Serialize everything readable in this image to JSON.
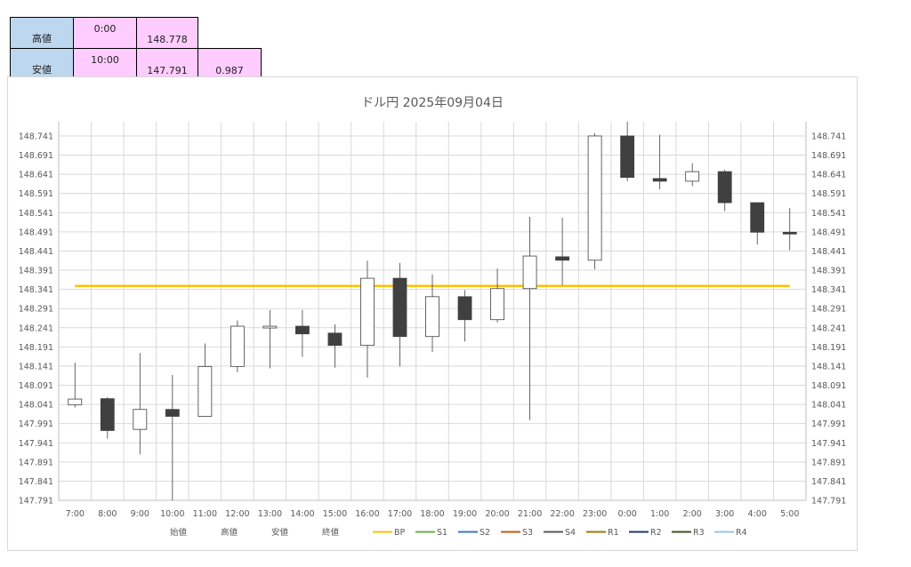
{
  "summary": {
    "rows": [
      {
        "label": "高値",
        "time": "0:00",
        "price": "148.778",
        "diff": ""
      },
      {
        "label": "安値",
        "time": "10:00",
        "price": "147.791",
        "diff": "0.987"
      }
    ]
  },
  "chart_data": {
    "type": "candlestick",
    "title": "ドル円  2025年09月04日",
    "y_ticks": [
      "147.791",
      "147.841",
      "147.891",
      "147.941",
      "147.991",
      "148.041",
      "148.091",
      "148.141",
      "148.191",
      "148.241",
      "148.291",
      "148.341",
      "148.391",
      "148.441",
      "148.491",
      "148.541",
      "148.591",
      "148.641",
      "148.691",
      "148.741"
    ],
    "ylim": [
      147.791,
      148.778
    ],
    "categories": [
      "7:00",
      "8:00",
      "9:00",
      "10:00",
      "11:00",
      "12:00",
      "13:00",
      "14:00",
      "15:00",
      "16:00",
      "17:00",
      "18:00",
      "19:00",
      "20:00",
      "21:00",
      "22:00",
      "23:00",
      "0:00",
      "1:00",
      "2:00",
      "3:00",
      "4:00",
      "5:00"
    ],
    "candles": [
      {
        "open": 148.04,
        "high": 148.15,
        "low": 148.033,
        "close": 148.055
      },
      {
        "open": 148.056,
        "high": 148.06,
        "low": 147.952,
        "close": 147.973
      },
      {
        "open": 147.976,
        "high": 148.175,
        "low": 147.911,
        "close": 148.028
      },
      {
        "open": 148.028,
        "high": 148.118,
        "low": 147.791,
        "close": 148.01
      },
      {
        "open": 148.01,
        "high": 148.2,
        "low": 148.01,
        "close": 148.14
      },
      {
        "open": 148.14,
        "high": 148.26,
        "low": 148.125,
        "close": 148.245
      },
      {
        "open": 148.243,
        "high": 148.287,
        "low": 148.135,
        "close": 148.245
      },
      {
        "open": 148.245,
        "high": 148.287,
        "low": 148.165,
        "close": 148.225
      },
      {
        "open": 148.227,
        "high": 148.25,
        "low": 148.137,
        "close": 148.195
      },
      {
        "open": 148.195,
        "high": 148.416,
        "low": 148.111,
        "close": 148.37
      },
      {
        "open": 148.37,
        "high": 148.41,
        "low": 148.14,
        "close": 148.218
      },
      {
        "open": 148.218,
        "high": 148.38,
        "low": 148.178,
        "close": 148.322
      },
      {
        "open": 148.322,
        "high": 148.339,
        "low": 148.205,
        "close": 148.262
      },
      {
        "open": 148.262,
        "high": 148.395,
        "low": 148.255,
        "close": 148.343
      },
      {
        "open": 148.343,
        "high": 148.53,
        "low": 148.0,
        "close": 148.428
      },
      {
        "open": 148.426,
        "high": 148.528,
        "low": 148.352,
        "close": 148.417
      },
      {
        "open": 148.417,
        "high": 148.748,
        "low": 148.393,
        "close": 148.741
      },
      {
        "open": 148.741,
        "high": 148.778,
        "low": 148.623,
        "close": 148.633
      },
      {
        "open": 148.63,
        "high": 148.744,
        "low": 148.602,
        "close": 148.623
      },
      {
        "open": 148.623,
        "high": 148.67,
        "low": 148.61,
        "close": 148.648
      },
      {
        "open": 148.648,
        "high": 148.653,
        "low": 148.545,
        "close": 148.567
      },
      {
        "open": 148.567,
        "high": 148.567,
        "low": 148.458,
        "close": 148.49
      },
      {
        "open": 148.49,
        "high": 148.553,
        "low": 148.443,
        "close": 148.488
      }
    ],
    "bp_value": 148.35,
    "bp_color": "#ffc000",
    "up_color": "#ffffff",
    "down_color": "#404040",
    "grid": true,
    "legend_position": "bottom",
    "legend": [
      {
        "name": "始値",
        "color": ""
      },
      {
        "name": "高値",
        "color": ""
      },
      {
        "name": "安値",
        "color": ""
      },
      {
        "name": "終値",
        "color": ""
      },
      {
        "name": "BP",
        "color": "#ffc000"
      },
      {
        "name": "S1",
        "color": "#70ad47"
      },
      {
        "name": "S2",
        "color": "#4472c4"
      },
      {
        "name": "S3",
        "color": "#c55a11"
      },
      {
        "name": "S4",
        "color": "#595959"
      },
      {
        "name": "R1",
        "color": "#9e7a00"
      },
      {
        "name": "R2",
        "color": "#1f3864"
      },
      {
        "name": "R3",
        "color": "#375623"
      },
      {
        "name": "R4",
        "color": "#9dc3e6"
      }
    ]
  }
}
